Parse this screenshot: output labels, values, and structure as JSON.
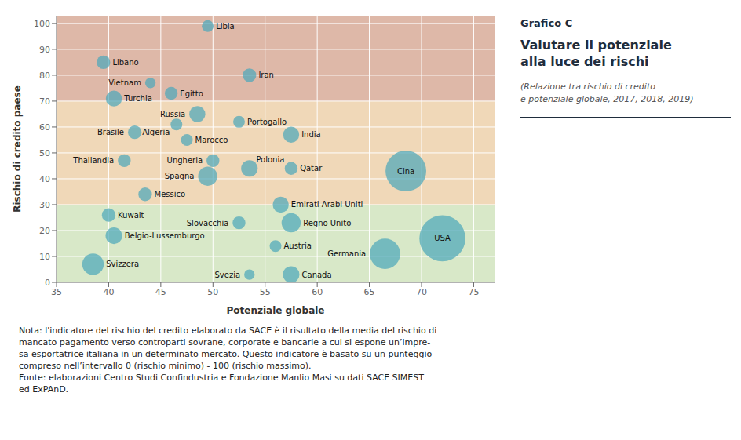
{
  "chart_data": {
    "type": "scatter",
    "supertitle": "Grafico C",
    "title": "Valutare il potenziale\nalla luce dei rischi",
    "subtitle": "(Relazione tra rischio di credito\ne potenziale globale, 2017, 2018, 2019)",
    "xlabel": "Potenziale globale",
    "ylabel": "Rischio di credito paese",
    "point_labels": [
      "Libia",
      "Libano",
      "Iran",
      "Vietnam",
      "Egitto",
      "Turchia",
      "Russia",
      "Portogallo",
      "India",
      "Algeria",
      "Brasile",
      "Marocco",
      "Ungheria",
      "Thailandia",
      "Polonia",
      "Qatar",
      "Spagna",
      "Messico",
      "Emirati Arabi Uniti",
      "Cina",
      "Kuwait",
      "Slovacchia",
      "Regno Unito",
      "Belgio-Lussemburgo",
      "Austria",
      "Germania",
      "Svizzera",
      "Svezia",
      "Canada",
      "USA"
    ],
    "x": [
      49.5,
      39.5,
      53.5,
      44.0,
      46.0,
      40.5,
      48.5,
      52.5,
      57.5,
      46.5,
      42.5,
      47.5,
      50.0,
      41.5,
      53.5,
      57.5,
      49.5,
      43.5,
      56.5,
      68.5,
      40.0,
      52.5,
      57.5,
      40.5,
      56.0,
      66.5,
      38.5,
      53.5,
      57.5,
      72.0
    ],
    "values": [
      99,
      85,
      80,
      77,
      73,
      71,
      65,
      62,
      57,
      61,
      58,
      55,
      47,
      47,
      44,
      44,
      41,
      34,
      30,
      43,
      26,
      23,
      23,
      18,
      14,
      11,
      7,
      3,
      3,
      17
    ],
    "sizes": [
      15,
      20,
      20,
      12,
      18,
      28,
      28,
      15,
      28,
      15,
      20,
      15,
      18,
      18,
      30,
      18,
      40,
      20,
      28,
      180,
      20,
      18,
      40,
      30,
      15,
      100,
      50,
      12,
      30,
      230
    ],
    "color": "#4da8ba",
    "xlim": [
      35,
      77
    ],
    "ylim": [
      0,
      103
    ],
    "xticks": [
      35,
      40,
      45,
      50,
      55,
      60,
      65,
      70,
      75
    ],
    "yticks": [
      0,
      10,
      20,
      30,
      40,
      50,
      60,
      70,
      80,
      90,
      100
    ],
    "grid": true,
    "bands": [
      {
        "y1": 70,
        "y2": 103,
        "color": "#deb8a8"
      },
      {
        "y1": 30,
        "y2": 70,
        "color": "#f0d8b8"
      },
      {
        "y1": 0,
        "y2": 30,
        "color": "#d8e8c8"
      }
    ],
    "note": [
      "Nota: l'indicatore del rischio del credito elaborato da SACE è il risultato della media del rischio di",
      "mancato pagamento verso controparti sovrane, corporate e bancarie a cui si espone un’impre-",
      "sa esportatrice italiana in un determinato mercato. Questo indicatore è basato su un punteggio",
      "compreso nell’intervallo 0 (rischio minimo) - 100 (rischio massimo).",
      "Fonte: elaborazioni Centro Studi Confindustria e Fondazione Manlio Masi su dati SACE SIMEST",
      "ed ExPAnD."
    ]
  }
}
